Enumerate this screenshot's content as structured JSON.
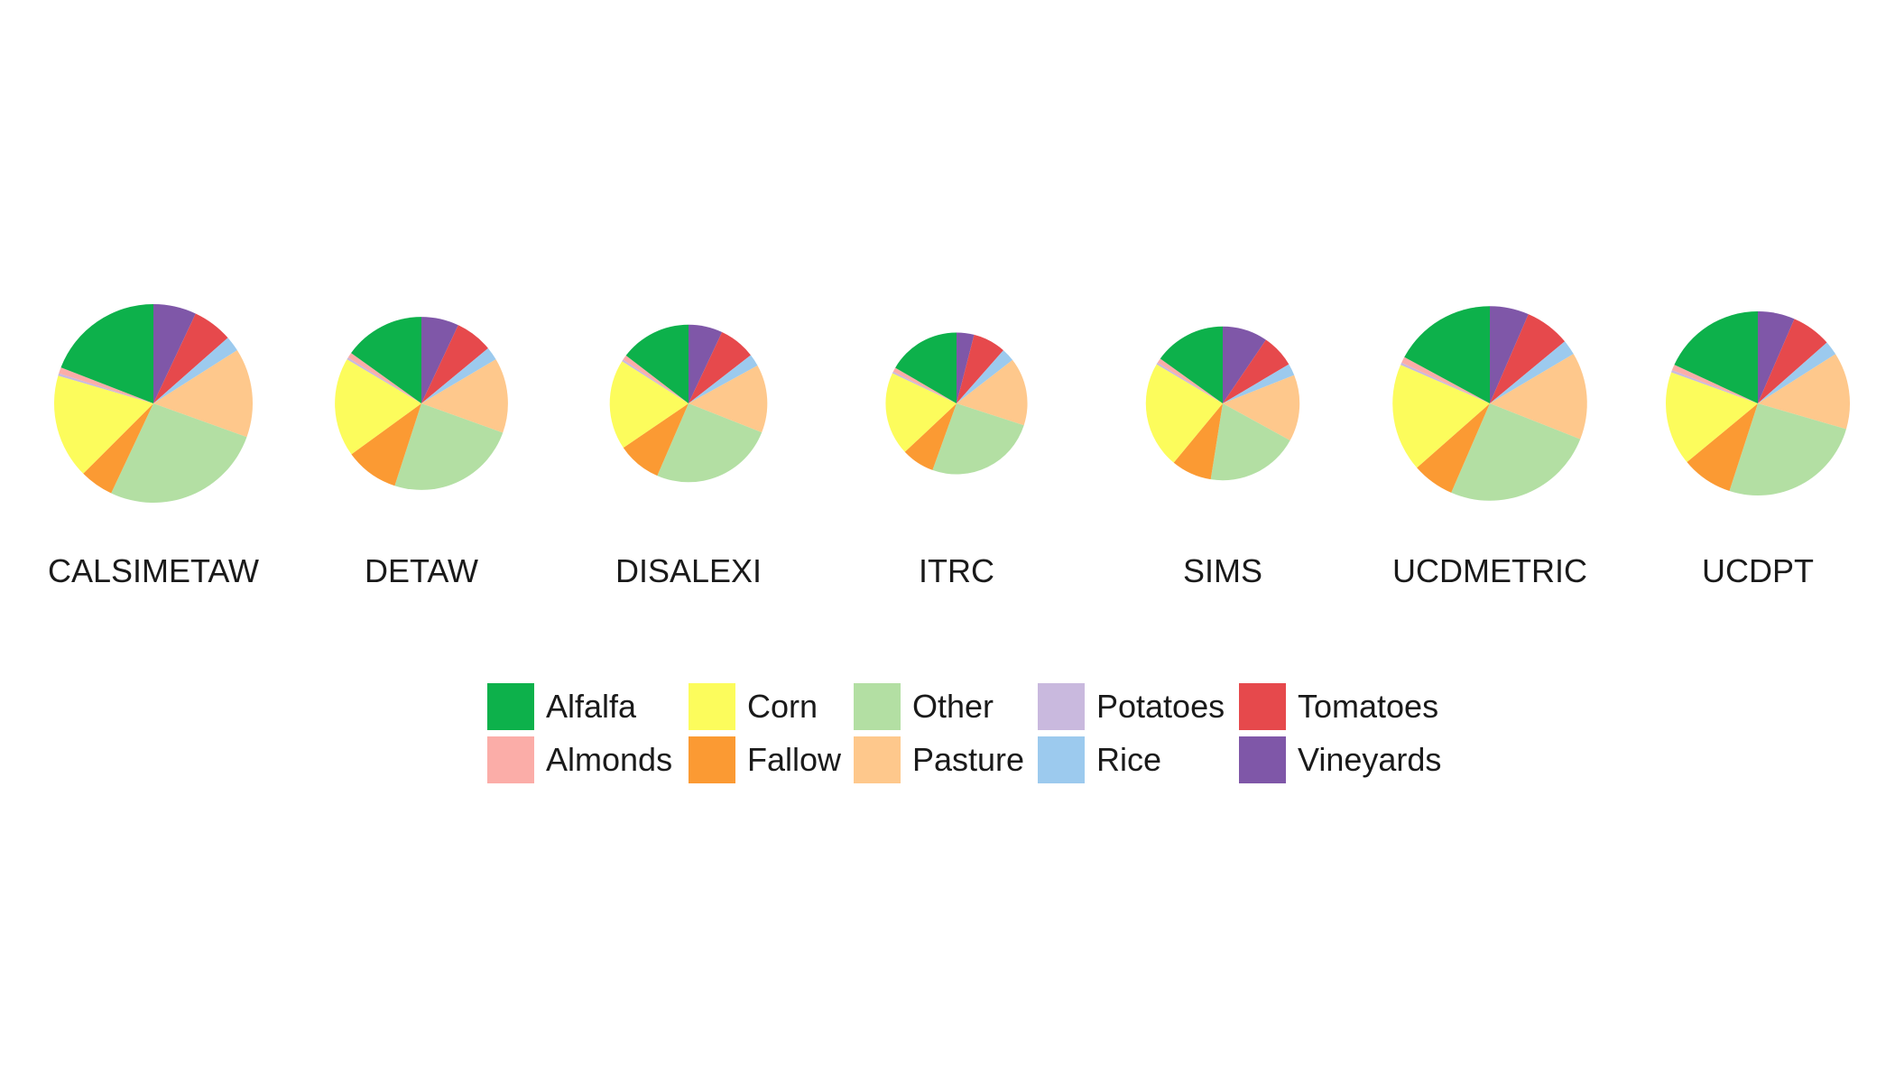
{
  "chart_data": {
    "type": "pie",
    "categories": [
      "Alfalfa",
      "Almonds",
      "Corn",
      "Fallow",
      "Other",
      "Pasture",
      "Potatoes",
      "Rice",
      "Tomatoes",
      "Vineyards"
    ],
    "colors": {
      "Alfalfa": "#0db14b",
      "Almonds": "#fbada8",
      "Corn": "#fcfc5c",
      "Fallow": "#fb9a33",
      "Other": "#b3dfa3",
      "Pasture": "#fec88c",
      "Potatoes": "#c9b9de",
      "Rice": "#9ccaee",
      "Tomatoes": "#e6494c",
      "Vineyards": "#7f57a8"
    },
    "pies": [
      {
        "name": "CALSIMETAW",
        "total": 1.0,
        "values": {
          "Vineyards": 7.0,
          "Tomatoes": 6.5,
          "Rice": 2.5,
          "Pasture": 14.5,
          "Other": 26.5,
          "Fallow": 5.5,
          "Corn": 17.0,
          "Potatoes": 0.4,
          "Almonds": 1.0,
          "Alfalfa": 19.1
        }
      },
      {
        "name": "DETAW",
        "total": 0.76,
        "values": {
          "Vineyards": 7.0,
          "Tomatoes": 7.0,
          "Rice": 2.5,
          "Pasture": 14.0,
          "Other": 24.5,
          "Fallow": 10.0,
          "Corn": 18.5,
          "Potatoes": 0.4,
          "Almonds": 1.0,
          "Alfalfa": 15.1
        }
      },
      {
        "name": "DISALEXI",
        "total": 0.63,
        "values": {
          "Vineyards": 7.0,
          "Tomatoes": 7.5,
          "Rice": 2.5,
          "Pasture": 14.0,
          "Other": 25.5,
          "Fallow": 9.0,
          "Corn": 18.5,
          "Potatoes": 0.4,
          "Almonds": 1.0,
          "Alfalfa": 14.6
        }
      },
      {
        "name": "ITRC",
        "total": 0.51,
        "values": {
          "Vineyards": 4.0,
          "Tomatoes": 7.5,
          "Rice": 3.0,
          "Pasture": 15.5,
          "Other": 25.5,
          "Fallow": 7.5,
          "Corn": 19.0,
          "Potatoes": 0.4,
          "Almonds": 1.0,
          "Alfalfa": 16.6
        }
      },
      {
        "name": "SIMS",
        "total": 0.6,
        "values": {
          "Vineyards": 9.5,
          "Tomatoes": 7.0,
          "Rice": 2.5,
          "Pasture": 14.0,
          "Other": 19.5,
          "Fallow": 8.5,
          "Corn": 22.5,
          "Potatoes": 0.4,
          "Almonds": 1.0,
          "Alfalfa": 15.1
        }
      },
      {
        "name": "UCDMETRIC",
        "total": 0.96,
        "values": {
          "Vineyards": 6.5,
          "Tomatoes": 7.5,
          "Rice": 2.5,
          "Pasture": 14.5,
          "Other": 25.5,
          "Fallow": 7.0,
          "Corn": 18.0,
          "Potatoes": 0.4,
          "Almonds": 1.0,
          "Alfalfa": 17.1
        }
      },
      {
        "name": "UCDPT",
        "total": 0.86,
        "values": {
          "Vineyards": 6.5,
          "Tomatoes": 7.0,
          "Rice": 2.5,
          "Pasture": 13.5,
          "Other": 25.5,
          "Fallow": 9.0,
          "Corn": 16.5,
          "Potatoes": 0.4,
          "Almonds": 1.0,
          "Alfalfa": 18.1
        }
      }
    ],
    "slice_order": [
      "Vineyards",
      "Tomatoes",
      "Rice",
      "Pasture",
      "Other",
      "Fallow",
      "Corn",
      "Potatoes",
      "Almonds",
      "Alfalfa"
    ],
    "legend": {
      "placement": "bottom",
      "entries": [
        "Alfalfa",
        "Almonds",
        "Corn",
        "Fallow",
        "Other",
        "Pasture",
        "Potatoes",
        "Rice",
        "Tomatoes",
        "Vineyards"
      ]
    },
    "grid": false
  }
}
